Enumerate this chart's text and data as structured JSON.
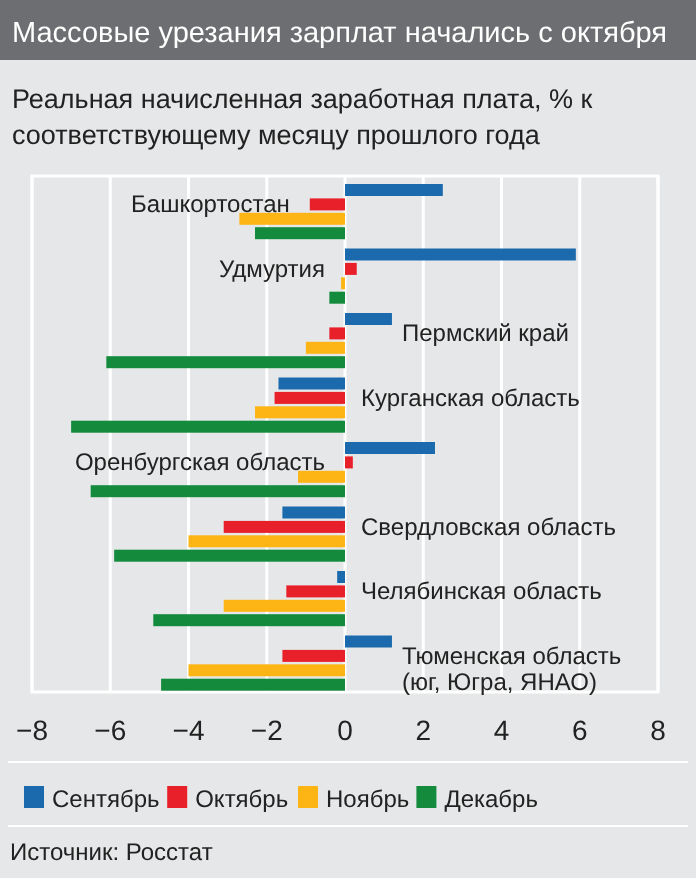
{
  "chart_data": {
    "type": "bar",
    "orientation": "horizontal",
    "title": "Массовые урезания зарплат начались с октября",
    "subtitle": "Реальная начисленная заработная плата, % к соответствующему месяцу прошлого года",
    "categories": [
      "Башкортостан",
      "Удмуртия",
      "Пермский край",
      "Курганская область",
      "Оренбургская область",
      "Свердловская область",
      "Челябинская область",
      "Тюменская область (юг, Югра, ЯНАО)"
    ],
    "series": [
      {
        "name": "Сентябрь",
        "color": "#1b6aad",
        "values": [
          2.5,
          5.9,
          1.2,
          -1.7,
          2.3,
          -1.6,
          -0.2,
          1.2
        ]
      },
      {
        "name": "Октябрь",
        "color": "#e8202a",
        "values": [
          -0.9,
          0.3,
          -0.4,
          -1.8,
          0.2,
          -3.1,
          -1.5,
          -1.6
        ]
      },
      {
        "name": "Ноябрь",
        "color": "#fdb515",
        "values": [
          -2.7,
          -0.1,
          -1.0,
          -2.3,
          -1.2,
          -4.0,
          -3.1,
          -4.0
        ]
      },
      {
        "name": "Декабрь",
        "color": "#138a3c",
        "values": [
          -2.3,
          -0.4,
          -6.1,
          -7.0,
          -6.5,
          -5.9,
          -4.9,
          -4.7
        ]
      }
    ],
    "xlim": [
      -8,
      8
    ],
    "xticks": [
      -8,
      -6,
      -4,
      -2,
      0,
      2,
      4,
      6,
      8
    ],
    "grid": "x",
    "legend": "bottom",
    "annotations": [
      "Источник: Росстат"
    ]
  }
}
